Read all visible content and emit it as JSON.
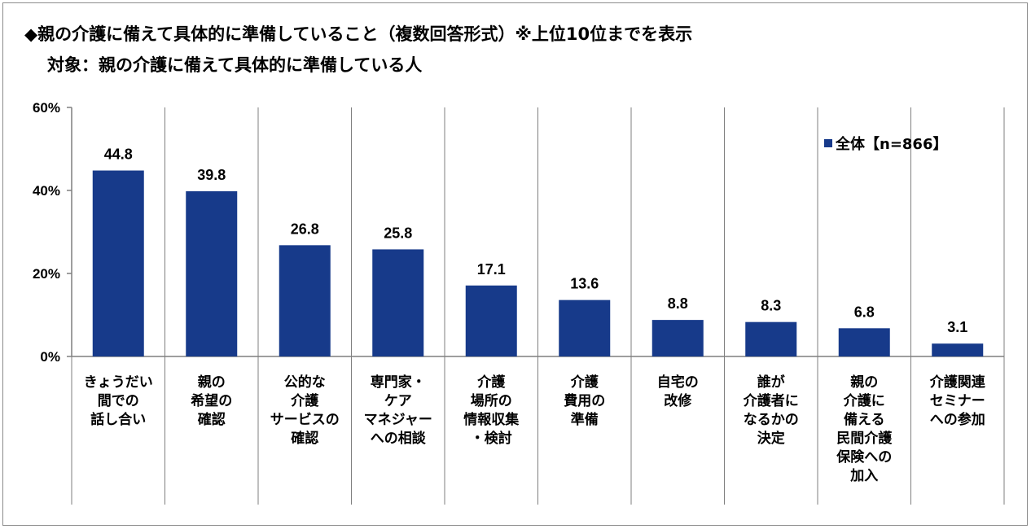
{
  "header": {
    "title": "◆親の介護に備えて具体的に準備していること（複数回答形式）※上位10位までを表示",
    "subtitle": "対象：親の介護に備えて具体的に準備している人"
  },
  "legend": {
    "label": "全体【n=866】"
  },
  "colors": {
    "bar": "#173a8a",
    "axis": "#7f7f7f"
  },
  "chart_data": {
    "type": "bar",
    "title": "◆親の介護に備えて具体的に準備していること（複数回答形式）※上位10位までを表示",
    "subtitle": "対象：親の介護に備えて具体的に準備している人",
    "categories": [
      [
        "きょうだい",
        "間での",
        "話し合い"
      ],
      [
        "親の",
        "希望の",
        "確認"
      ],
      [
        "公的な",
        "介護",
        "サービスの",
        "確認"
      ],
      [
        "専門家・",
        "ケア",
        "マネジャー",
        "への相談"
      ],
      [
        "介護",
        "場所の",
        "情報収集",
        "・検討"
      ],
      [
        "介護",
        "費用の",
        "準備"
      ],
      [
        "自宅の",
        "改修"
      ],
      [
        "誰が",
        "介護者に",
        "なるかの",
        "決定"
      ],
      [
        "親の",
        "介護に",
        "備える",
        "民間介護",
        "保険への",
        "加入"
      ],
      [
        "介護関連",
        "セミナー",
        "への参加"
      ]
    ],
    "series": [
      {
        "name": "全体【n=866】",
        "values": [
          44.8,
          39.8,
          26.8,
          25.8,
          17.1,
          13.6,
          8.8,
          8.3,
          6.8,
          3.1
        ]
      }
    ],
    "value_labels": [
      "44.8",
      "39.8",
      "26.8",
      "25.8",
      "17.1",
      "13.6",
      "8.8",
      "8.3",
      "6.8",
      "3.1"
    ],
    "y_ticks": [
      "0%",
      "20%",
      "40%",
      "60%"
    ],
    "ylim": [
      0,
      60
    ],
    "legend_position": "top-right",
    "grid": false
  }
}
